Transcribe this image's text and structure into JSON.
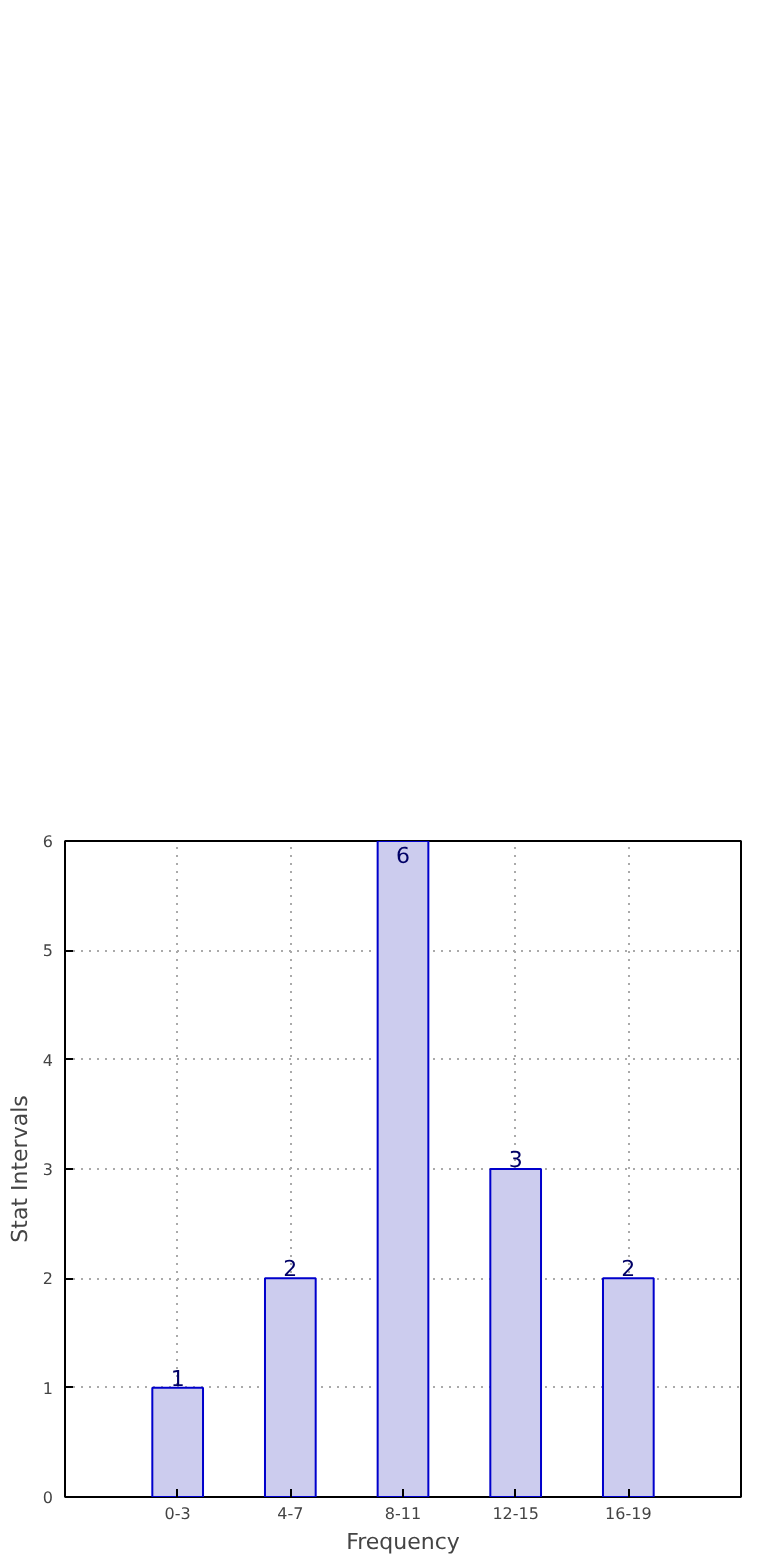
{
  "chart_data": {
    "type": "bar",
    "xlabel": "Frequency",
    "ylabel": "Stat Intervals",
    "categories": [
      "0-3",
      "4-7",
      "8-11",
      "12-15",
      "16-19"
    ],
    "values": [
      1,
      2,
      6,
      3,
      2
    ],
    "color": "#ccccee",
    "ylim": [
      0,
      6
    ],
    "yticks": [
      0,
      1,
      2,
      3,
      4,
      5,
      6
    ],
    "grid": true,
    "data_labels": true
  }
}
